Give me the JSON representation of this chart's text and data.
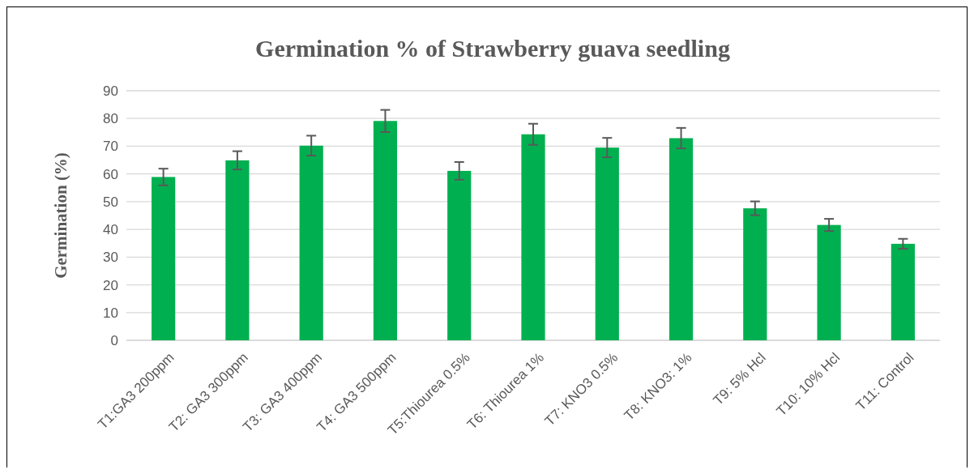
{
  "chart_data": {
    "type": "bar",
    "title": "Germination % of Strawberry guava seedling",
    "ylabel": "Germination (%)",
    "categories": [
      "T1:GA3 200ppm",
      "T2: GA3 300ppm",
      "T3: GA3 400ppm",
      "T4: GA3 500ppm",
      "T5:Thiourea 0.5%",
      "T6: Thiourea 1%",
      "T7: KNO3 0.5%",
      "T8: KNO3: 1%",
      "T9: 5% Hcl",
      "T10: 10% Hcl",
      "T11: Control"
    ],
    "values": [
      58.9,
      64.9,
      70.2,
      79.1,
      61.1,
      74.3,
      69.5,
      72.9,
      47.6,
      41.6,
      34.8
    ],
    "errors": [
      3.0,
      3.3,
      3.6,
      4.0,
      3.2,
      3.8,
      3.5,
      3.7,
      2.5,
      2.2,
      1.8
    ],
    "color": "#00b050",
    "ylim": [
      0,
      90
    ],
    "yticks": [
      0,
      10,
      20,
      30,
      40,
      50,
      60,
      70,
      80,
      90
    ],
    "grid": "y"
  }
}
